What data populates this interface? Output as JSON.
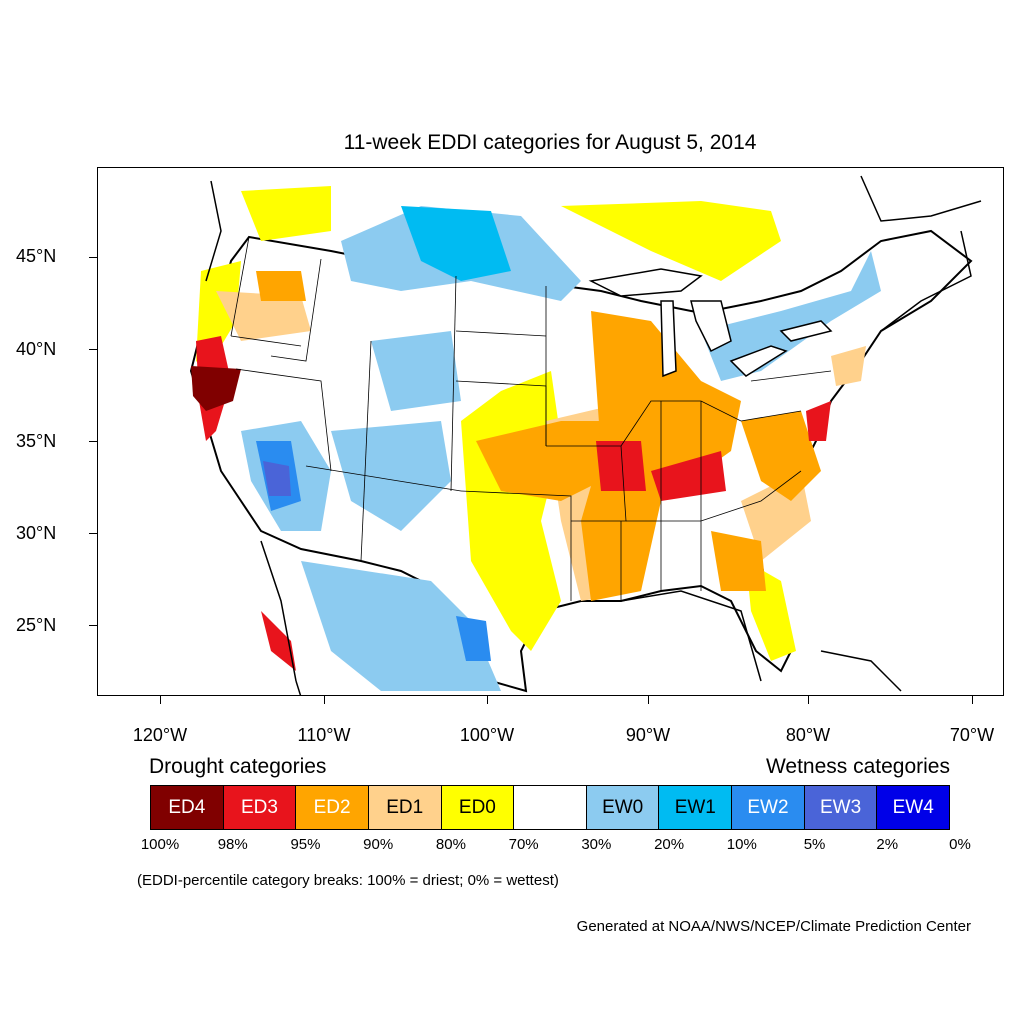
{
  "title": "11-week EDDI categories for August 5, 2014",
  "lat_labels": [
    "45°N",
    "40°N",
    "35°N",
    "30°N",
    "25°N"
  ],
  "lon_labels": [
    "120°W",
    "110°W",
    "100°W",
    "90°W",
    "80°W",
    "70°W"
  ],
  "legend": {
    "drought_title": "Drought categories",
    "wetness_title": "Wetness categories",
    "categories": [
      {
        "label": "ED4",
        "color": "#800000",
        "text_color": "#ffffff"
      },
      {
        "label": "ED3",
        "color": "#e8141c",
        "text_color": "#ffffff"
      },
      {
        "label": "ED2",
        "color": "#ffa500",
        "text_color": "#ffffff"
      },
      {
        "label": "ED1",
        "color": "#ffd18c",
        "text_color": "#000000"
      },
      {
        "label": "ED0",
        "color": "#ffff00",
        "text_color": "#000000"
      },
      {
        "label": "",
        "color": "#ffffff",
        "text_color": "#000000"
      },
      {
        "label": "EW0",
        "color": "#8ccbf0",
        "text_color": "#000000"
      },
      {
        "label": "EW1",
        "color": "#00bbf2",
        "text_color": "#000000"
      },
      {
        "label": "EW2",
        "color": "#2a8cf0",
        "text_color": "#ffffff"
      },
      {
        "label": "EW3",
        "color": "#4a64d8",
        "text_color": "#ffffff"
      },
      {
        "label": "EW4",
        "color": "#0000e8",
        "text_color": "#ffffff"
      }
    ],
    "percentiles": [
      "100%",
      "98%",
      "95%",
      "90%",
      "80%",
      "70%",
      "30%",
      "20%",
      "10%",
      "5%",
      "2%",
      "0%"
    ]
  },
  "note": "(EDDI-percentile category breaks: 100% = driest; 0% = wettest)",
  "credit": "Generated at NOAA/NWS/NCEP/Climate Prediction Center"
}
